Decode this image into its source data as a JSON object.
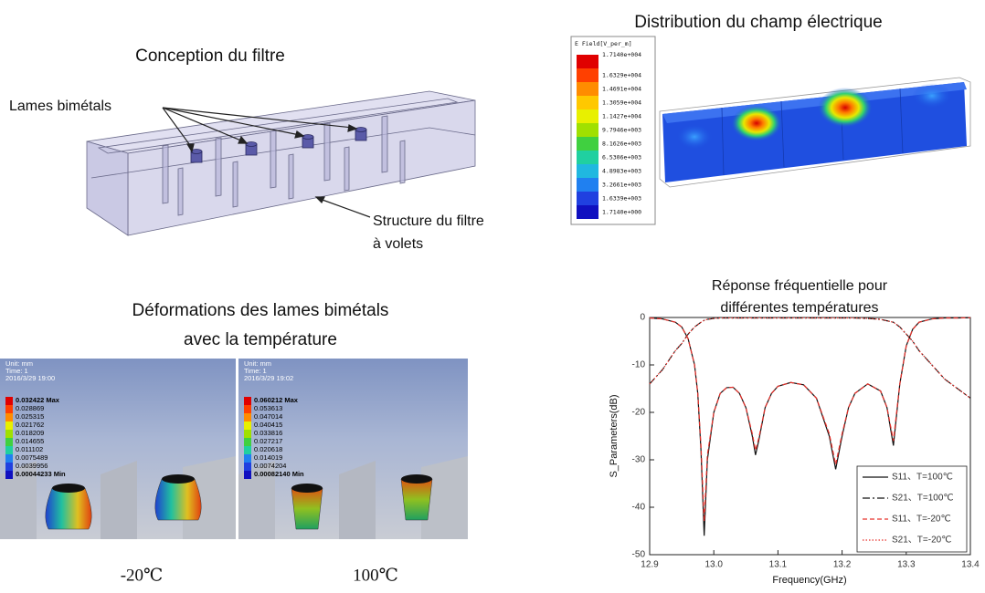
{
  "filter_design": {
    "title": "Conception du filtre",
    "label_blades": "Lames bimétals",
    "label_structure": [
      "Structure du filtre",
      "à volets"
    ]
  },
  "field_distribution": {
    "title": "Distribution du champ électrique",
    "legend_title": "E Field[V_per_m]",
    "legend_values": [
      "1.7140e+004",
      "1.6329e+004",
      "1.4691e+004",
      "1.3059e+004",
      "1.1427e+004",
      "9.7946e+003",
      "8.1626e+003",
      "6.5306e+003",
      "4.8983e+003",
      "3.2661e+003",
      "1.6339e+003",
      "1.7140e+000"
    ]
  },
  "deformation": {
    "title": [
      "Déformations des lames bimétals",
      "avec la température"
    ],
    "panels": [
      {
        "unit": "Unit: mm",
        "time": "Time: 1",
        "date": "2016/3/29 19:00",
        "legend": [
          "0.032422 Max",
          "0.028869",
          "0.025315",
          "0.021762",
          "0.018209",
          "0.014655",
          "0.011102",
          "0.0075489",
          "0.0039956",
          "0.00044233 Min"
        ],
        "caption": "-20℃"
      },
      {
        "unit": "Unit: mm",
        "time": "Time: 1",
        "date": "2016/3/29 19:02",
        "legend": [
          "0.060212 Max",
          "0.053613",
          "0.047014",
          "0.040415",
          "0.033816",
          "0.027217",
          "0.020618",
          "0.014019",
          "0.0074204",
          "0.00082140 Min"
        ],
        "caption": "100℃"
      }
    ]
  },
  "chart_data": {
    "type": "line",
    "title": [
      "Réponse fréquentielle pour",
      "différentes températures"
    ],
    "x_label": "Frequency(GHz)",
    "y_label": "S_Parameters(dB)",
    "xlim": [
      12.9,
      13.4
    ],
    "xticks": [
      12.9,
      {
        "value": 13,
        "label": "13.0"
      },
      13.1,
      13.2,
      13.3,
      13.4
    ],
    "ylim": [
      -50,
      0
    ],
    "yticks": [
      -50,
      -40,
      -30,
      -20,
      -10,
      0
    ],
    "legend": "lower right",
    "x": [
      12.9,
      12.92,
      12.94,
      12.95,
      12.96,
      12.97,
      12.975,
      12.98,
      12.985,
      12.99,
      13.0,
      13.01,
      13.02,
      13.03,
      13.04,
      13.05,
      13.06,
      13.065,
      13.07,
      13.08,
      13.09,
      13.1,
      13.12,
      13.14,
      13.16,
      13.18,
      13.19,
      13.2,
      13.21,
      13.22,
      13.24,
      13.26,
      13.27,
      13.28,
      13.29,
      13.3,
      13.31,
      13.32,
      13.34,
      13.36,
      13.38,
      13.4
    ],
    "series": [
      {
        "name": "S11、T=100℃",
        "color": "#111111",
        "linestyle": "solid",
        "values": [
          -0.1,
          -0.3,
          -1,
          -2,
          -4.5,
          -10,
          -16,
          -28,
          -46,
          -30,
          -20,
          -16,
          -14.8,
          -14.7,
          -16,
          -19,
          -25,
          -29,
          -26,
          -19,
          -16,
          -14.5,
          -13.7,
          -14.2,
          -17,
          -25,
          -32,
          -25,
          -19,
          -16,
          -14,
          -15.5,
          -19,
          -27,
          -14,
          -6,
          -2.5,
          -1,
          -0.3,
          -0.1,
          -0.1,
          -0.05
        ]
      },
      {
        "name": "S21、T=100℃",
        "color": "#111111",
        "linestyle": "dashdot",
        "values": [
          -14,
          -11,
          -7,
          -5.5,
          -3.5,
          -2,
          -1.5,
          -1,
          -0.6,
          -0.4,
          -0.2,
          -0.1,
          -0.1,
          -0.1,
          -0.1,
          -0.1,
          -0.1,
          -0.1,
          -0.1,
          -0.1,
          -0.1,
          -0.1,
          -0.1,
          -0.1,
          -0.1,
          -0.1,
          -0.1,
          -0.1,
          -0.1,
          -0.1,
          -0.2,
          -0.4,
          -0.7,
          -1,
          -2,
          -3.5,
          -5,
          -7,
          -10,
          -13,
          -15,
          -17
        ]
      },
      {
        "name": "S11、T=-20℃",
        "color": "#e8302a",
        "linestyle": "dashed",
        "values": [
          -0.1,
          -0.3,
          -1,
          -2,
          -4.5,
          -10,
          -16,
          -27,
          -43,
          -29,
          -20,
          -16,
          -14.8,
          -14.7,
          -16,
          -19,
          -24.5,
          -28,
          -25.5,
          -19,
          -16,
          -14.5,
          -13.7,
          -14.2,
          -17,
          -24.5,
          -31,
          -24.5,
          -19,
          -16,
          -14,
          -15.5,
          -19,
          -26,
          -14,
          -6,
          -2.5,
          -1,
          -0.3,
          -0.1,
          -0.1,
          -0.05
        ]
      },
      {
        "name": "S21、T=-20℃",
        "color": "#e8302a",
        "linestyle": "dotted",
        "values": [
          -14,
          -11,
          -7,
          -5.5,
          -3.5,
          -2,
          -1.5,
          -1,
          -0.6,
          -0.4,
          -0.2,
          -0.1,
          -0.1,
          -0.1,
          -0.1,
          -0.1,
          -0.1,
          -0.1,
          -0.1,
          -0.1,
          -0.1,
          -0.1,
          -0.1,
          -0.1,
          -0.1,
          -0.1,
          -0.1,
          -0.1,
          -0.1,
          -0.1,
          -0.2,
          -0.4,
          -0.7,
          -1,
          -2,
          -3.5,
          -5,
          -7,
          -10,
          -13,
          -15,
          -17
        ]
      }
    ]
  }
}
